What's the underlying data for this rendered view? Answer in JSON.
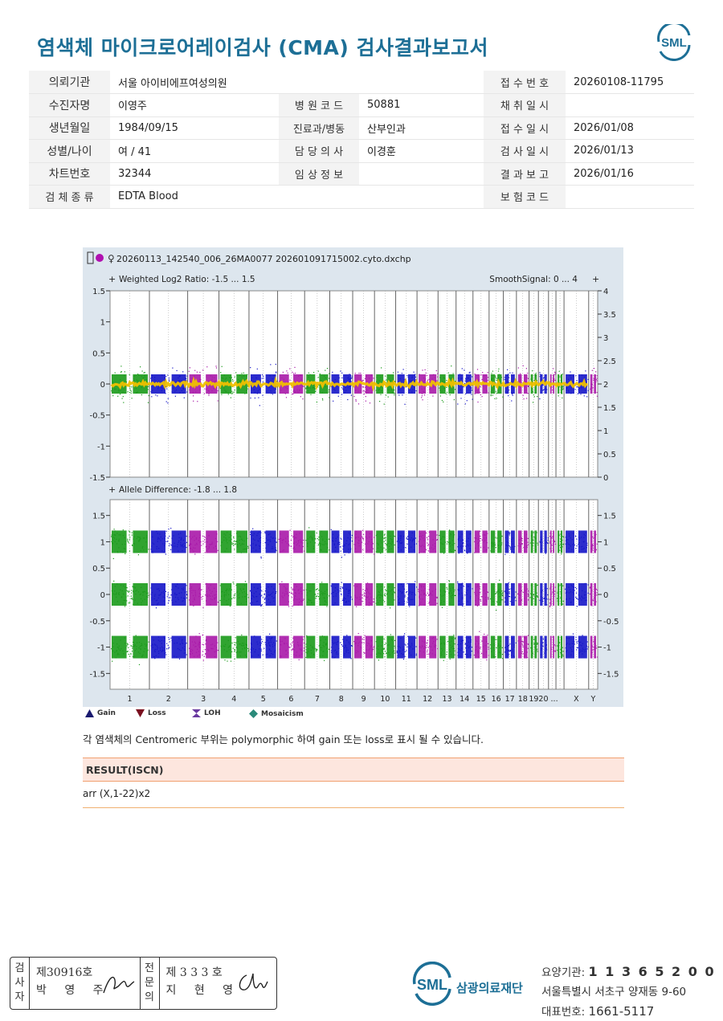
{
  "header": {
    "title": "염색체 마이크로어레이검사 (CMA) 검사결과보고서",
    "logo_text": "SML"
  },
  "info": {
    "requester_label": "의뢰기관",
    "requester": "서울 아이비에프여성의원",
    "receipt_no_label": "접 수 번 호",
    "receipt_no": "20260108-11795",
    "patient_label": "수진자명",
    "patient": "이영주",
    "hospital_code_label": "병 원 코 드",
    "hospital_code": "50881",
    "collection_date_label": "채 취 일 시",
    "collection_date": "",
    "dob_label": "생년월일",
    "dob": "1984/09/15",
    "dept_label": "진료과/병동",
    "dept": "산부인과",
    "receipt_date_label": "접 수 일 시",
    "receipt_date": "2026/01/08",
    "sex_age_label": "성별/나이",
    "sex_age": "여 / 41",
    "doctor_label": "담 당 의 사",
    "doctor": "이경훈",
    "test_date_label": "검 사 일 시",
    "test_date": "2026/01/13",
    "chart_no_label": "차트번호",
    "chart_no": "32344",
    "clinical_label": "임 상 정 보",
    "clinical": "",
    "report_date_label": "결 과 보 고",
    "report_date": "2026/01/16",
    "specimen_label": "검 체 종 류",
    "specimen": "EDTA Blood",
    "insurance_label": "보 험 코 드",
    "insurance": ""
  },
  "chart_data": {
    "type": "scatter",
    "file_name": "20260113_142540_006_26MA0077 202601091715002.cyto.dxchp",
    "panels": [
      {
        "title": "Weighted Log2 Ratio: -1.5 ... 1.5",
        "right_title": "SmoothSignal: 0 ... 4",
        "ylim": [
          -1.5,
          1.5
        ],
        "y_ticks": [
          "1.5",
          "1",
          "0.5",
          "0",
          "-0.5",
          "-1",
          "-1.5"
        ],
        "right_ylim": [
          0,
          4
        ],
        "right_ticks": [
          "4",
          "3.5",
          "3",
          "2.5",
          "2",
          "1.5",
          "1",
          "0.5",
          "0"
        ],
        "bands": [
          0
        ],
        "smooth_signal": 2
      },
      {
        "title": "Allele Difference: -1.8 ... 1.8",
        "ylim": [
          -1.8,
          1.8
        ],
        "y_ticks": [
          "1.5",
          "1",
          "0.5",
          "0",
          "-0.5",
          "-1",
          "-1.5"
        ],
        "right_ticks": [
          "1.5",
          "1",
          "0.5",
          "0",
          "-0.5",
          "-1",
          "-1.5"
        ],
        "bands": [
          1,
          0,
          -1
        ]
      }
    ],
    "chromosomes": [
      "1",
      "2",
      "3",
      "4",
      "5",
      "6",
      "7",
      "8",
      "9",
      "10",
      "11",
      "12",
      "13",
      "14",
      "15",
      "16",
      "17",
      "18",
      "19",
      "20",
      "21",
      "22",
      "X",
      "Y"
    ],
    "x_labels": [
      "1",
      "2",
      "3",
      "4",
      "5",
      "6",
      "7",
      "8",
      "9",
      "10",
      "11",
      "12",
      "13",
      "14",
      "15",
      "16",
      "17",
      "18",
      "19",
      "20 ...",
      "X",
      "Y"
    ],
    "chrom_widths": [
      249,
      242,
      198,
      190,
      181,
      171,
      159,
      145,
      138,
      134,
      135,
      133,
      114,
      107,
      102,
      90,
      83,
      80,
      59,
      64,
      47,
      51,
      156,
      57
    ],
    "series_colors": [
      "#1a9a1a",
      "#1515c8",
      "#a818a8"
    ],
    "smooth_color": "#f0c000",
    "legend": [
      {
        "label": "Gain",
        "icon": "triangle-up",
        "color": "#1a1a70"
      },
      {
        "label": "Loss",
        "icon": "triangle-down",
        "color": "#7a1020"
      },
      {
        "label": "LOH",
        "icon": "bowtie",
        "color": "#6a3aa0"
      },
      {
        "label": "Mosaicism",
        "icon": "diamond",
        "color": "#2a8a7a"
      }
    ]
  },
  "note": "각 염색체의 Centromeric 부위는 polymorphic 하여 gain 또는 loss로 표시 될 수 있습니다.",
  "result": {
    "heading": "RESULT(ISCN)",
    "value": "arr (X,1-22)x2"
  },
  "signatures": {
    "tester_label": [
      "검",
      "사",
      "자"
    ],
    "tester_no": "제30916호",
    "tester_name": "박 영 주",
    "specialist_label": [
      "전",
      "문",
      "의"
    ],
    "specialist_no": "제 3 3 3 호",
    "specialist_name": "지 현 영"
  },
  "footer": {
    "logo_text": "SML",
    "org_name": "삼광의료재단",
    "code_label": "요양기관:",
    "code": "1 1 3 6 5 2 0 0",
    "address": "서울특별시 서초구 양재동 9-60",
    "phone_label": "대표번호:",
    "phone": "1661-5117"
  }
}
